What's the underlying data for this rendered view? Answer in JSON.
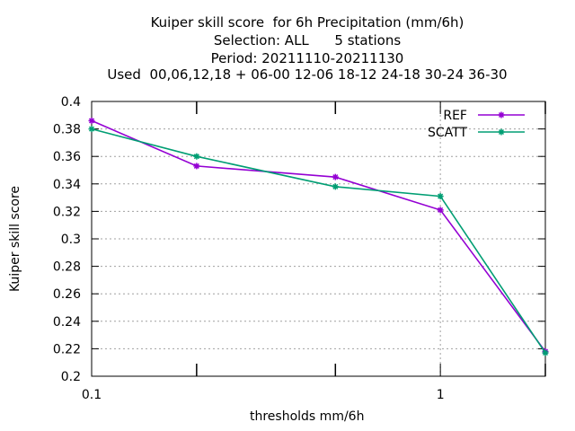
{
  "chart_data": {
    "type": "line",
    "title": [
      "Kuiper skill score  for 6h Precipitation (mm/6h)",
      "Selection: ALL      5 stations",
      "Period: 20211110-20211130",
      "Used  00,06,12,18 + 06-00 12-06 18-12 24-18 30-24 36-30"
    ],
    "xlabel": "thresholds mm/6h",
    "ylabel": "Kuiper skill score",
    "x_scale": "log",
    "xlim": [
      0.1,
      2
    ],
    "ylim": [
      0.2,
      0.4
    ],
    "x_tick_labels": [
      {
        "value": 0.1,
        "label": "0.1"
      },
      {
        "value": 1,
        "label": "1"
      }
    ],
    "x_minor_ticks": [
      0.2,
      0.5,
      2
    ],
    "y_ticks": [
      "0.2",
      "0.22",
      "0.24",
      "0.26",
      "0.28",
      "0.3",
      "0.32",
      "0.34",
      "0.36",
      "0.38",
      "0.4"
    ],
    "grid": true,
    "legend_position": "top-right",
    "series": [
      {
        "name": "REF",
        "color": "#9400d3",
        "x": [
          0.1,
          0.2,
          0.5,
          1,
          2
        ],
        "y": [
          0.386,
          0.353,
          0.345,
          0.321,
          0.218
        ]
      },
      {
        "name": "SCATT",
        "color": "#009e73",
        "x": [
          0.1,
          0.2,
          0.5,
          1,
          2
        ],
        "y": [
          0.38,
          0.36,
          0.338,
          0.331,
          0.217
        ]
      }
    ]
  }
}
